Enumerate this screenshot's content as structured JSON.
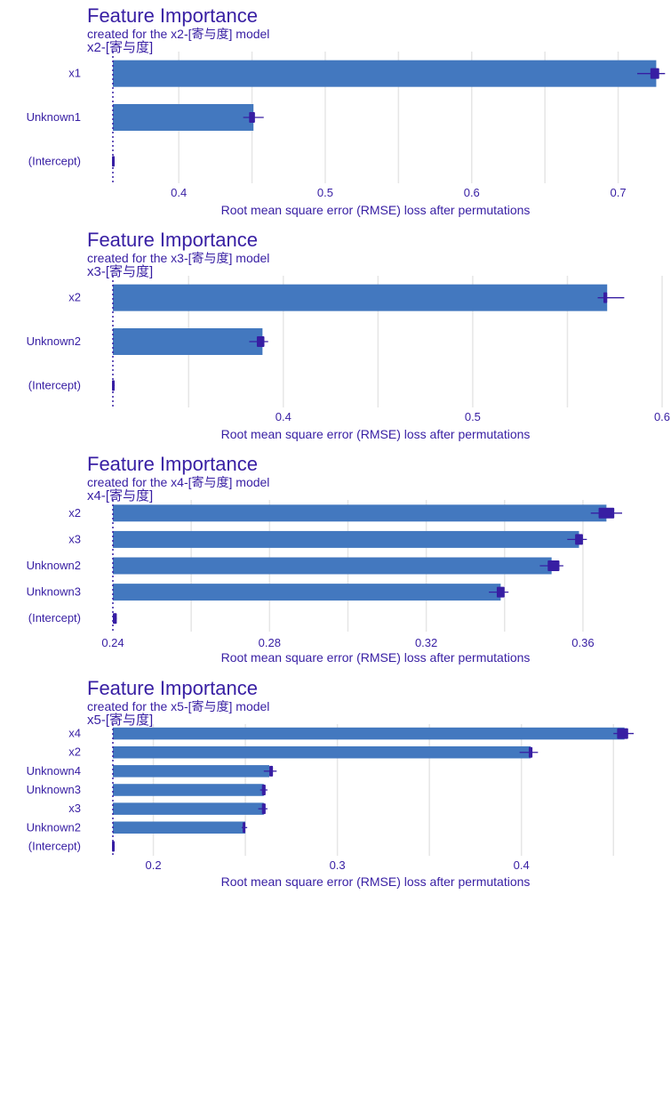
{
  "colors": {
    "bar": "#4378bf",
    "text": "#371ea3",
    "grid": "#e6e6e6",
    "box": "#371ea3",
    "baseline": "#371ea3"
  },
  "chart_data": [
    {
      "type": "bar",
      "orientation": "horizontal",
      "title": "Feature Importance",
      "subtitle": "created for the x2-[寄与度] model",
      "facet_label": "x2-[寄与度]",
      "xlabel": "Root mean square error (RMSE) loss after permutations",
      "baseline": 0.355,
      "xlim": [
        0.355,
        0.73
      ],
      "ticks": [
        0.4,
        0.5,
        0.6,
        0.7
      ],
      "tick_labels": [
        "0.4",
        "0.5",
        "0.6",
        "0.7"
      ],
      "categories": [
        "x1",
        "Unknown1",
        "(Intercept)"
      ],
      "values": [
        0.726,
        0.451,
        0.355
      ],
      "boxes": [
        [
          0.722,
          0.728
        ],
        [
          0.448,
          0.452
        ],
        [
          0.355,
          0.356
        ]
      ],
      "whiskers": [
        [
          0.713,
          0.732
        ],
        [
          0.444,
          0.458
        ],
        [
          0.355,
          0.356
        ]
      ],
      "grid": true
    },
    {
      "type": "bar",
      "orientation": "horizontal",
      "title": "Feature Importance",
      "subtitle": "created for the x3-[寄与度] model",
      "facet_label": "x3-[寄与度]",
      "xlabel": "Root mean square error (RMSE) loss after permutations",
      "baseline": 0.31,
      "xlim": [
        0.31,
        0.6
      ],
      "ticks": [
        0.4,
        0.5,
        0.6
      ],
      "tick_labels": [
        "0.4",
        "0.5",
        "0.6"
      ],
      "categories": [
        "x2",
        "Unknown2",
        "(Intercept)"
      ],
      "values": [
        0.571,
        0.389,
        0.31
      ],
      "boxes": [
        [
          0.569,
          0.571
        ],
        [
          0.386,
          0.39
        ],
        [
          0.31,
          0.311
        ]
      ],
      "whiskers": [
        [
          0.566,
          0.58
        ],
        [
          0.382,
          0.392
        ],
        [
          0.31,
          0.311
        ]
      ],
      "grid": true
    },
    {
      "type": "bar",
      "orientation": "horizontal",
      "title": "Feature Importance",
      "subtitle": "created for the x4-[寄与度] model",
      "facet_label": "x4-[寄与度]",
      "xlabel": "Root mean square error (RMSE) loss after permutations",
      "baseline": 0.24,
      "xlim": [
        0.24,
        0.37
      ],
      "ticks": [
        0.24,
        0.28,
        0.32,
        0.36
      ],
      "tick_labels": [
        "0.24",
        "0.28",
        "0.32",
        "0.36"
      ],
      "categories": [
        "x2",
        "x3",
        "Unknown2",
        "Unknown3",
        "(Intercept)"
      ],
      "values": [
        0.366,
        0.359,
        0.352,
        0.339,
        0.24
      ],
      "boxes": [
        [
          0.364,
          0.368
        ],
        [
          0.358,
          0.36
        ],
        [
          0.351,
          0.354
        ],
        [
          0.338,
          0.34
        ],
        [
          0.24,
          0.241
        ]
      ],
      "whiskers": [
        [
          0.362,
          0.37
        ],
        [
          0.356,
          0.361
        ],
        [
          0.349,
          0.355
        ],
        [
          0.336,
          0.341
        ],
        [
          0.24,
          0.241
        ]
      ],
      "grid": true
    },
    {
      "type": "bar",
      "orientation": "horizontal",
      "title": "Feature Importance",
      "subtitle": "created for the x5-[寄与度] model",
      "facet_label": "x5-[寄与度]",
      "xlabel": "Root mean square error (RMSE) loss after permutations",
      "baseline": 0.178,
      "xlim": [
        0.178,
        0.461
      ],
      "ticks": [
        0.2,
        0.3,
        0.4
      ],
      "tick_labels": [
        "0.2",
        "0.3",
        "0.4"
      ],
      "categories": [
        "x4",
        "x2",
        "Unknown4",
        "Unknown3",
        "x3",
        "Unknown2",
        "(Intercept)"
      ],
      "values": [
        0.456,
        0.405,
        0.263,
        0.26,
        0.26,
        0.25,
        0.178
      ],
      "boxes": [
        [
          0.452,
          0.458
        ],
        [
          0.404,
          0.406
        ],
        [
          0.263,
          0.265
        ],
        [
          0.259,
          0.261
        ],
        [
          0.259,
          0.261
        ],
        [
          0.249,
          0.25
        ],
        [
          0.178,
          0.179
        ]
      ],
      "whiskers": [
        [
          0.45,
          0.461
        ],
        [
          0.399,
          0.409
        ],
        [
          0.26,
          0.267
        ],
        [
          0.258,
          0.262
        ],
        [
          0.257,
          0.262
        ],
        [
          0.248,
          0.251
        ],
        [
          0.178,
          0.179
        ]
      ],
      "grid": true
    }
  ]
}
